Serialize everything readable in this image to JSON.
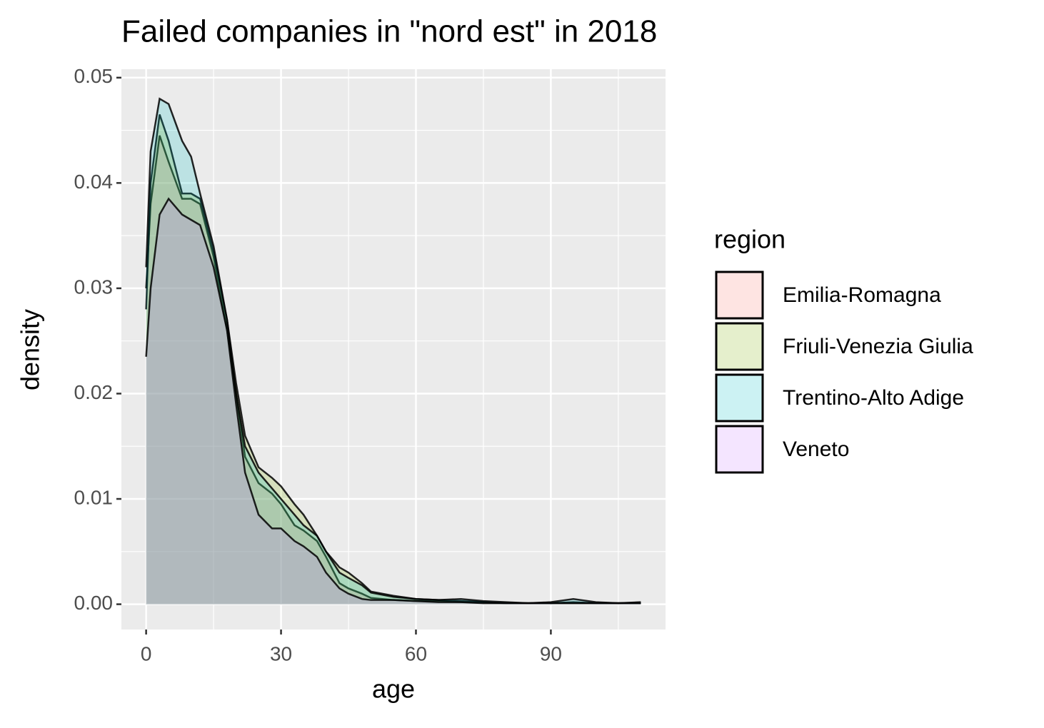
{
  "chart_data": {
    "type": "density",
    "title": "Failed companies in \"nord est\" in 2018",
    "x_label": "age",
    "y_label": "density",
    "legend_title": "region",
    "legend_position": "right",
    "x": [
      0,
      1,
      3,
      5,
      8,
      10,
      12,
      15,
      18,
      20,
      22,
      25,
      28,
      30,
      33,
      35,
      38,
      40,
      43,
      45,
      48,
      50,
      55,
      60,
      65,
      70,
      75,
      80,
      85,
      90,
      95,
      100,
      105,
      110
    ],
    "series": [
      {
        "name": "Emilia-Romagna",
        "color": "#F8766D",
        "values": [
          0.03,
          0.038,
          0.0445,
          0.042,
          0.0385,
          0.0385,
          0.038,
          0.033,
          0.026,
          0.02,
          0.014,
          0.0115,
          0.0105,
          0.0095,
          0.0075,
          0.007,
          0.006,
          0.0045,
          0.002,
          0.0015,
          0.001,
          0.0006,
          0.0004,
          0.0003,
          0.0003,
          0.0002,
          0.0002,
          0.0001,
          0.0001,
          0.0001,
          0.0001,
          0.0001,
          0.0001,
          0.0001
        ]
      },
      {
        "name": "Friuli-Venezia Giulia",
        "color": "#7CAE00",
        "values": [
          0.028,
          0.04,
          0.0465,
          0.044,
          0.039,
          0.039,
          0.0385,
          0.0335,
          0.027,
          0.021,
          0.016,
          0.013,
          0.012,
          0.0112,
          0.0095,
          0.0085,
          0.0065,
          0.005,
          0.0035,
          0.003,
          0.002,
          0.0012,
          0.0008,
          0.0005,
          0.0004,
          0.0003,
          0.0002,
          0.0001,
          0.0001,
          0.0001,
          0.0002,
          0.0001,
          0.0001,
          0.0001
        ]
      },
      {
        "name": "Trentino-Alto Adige",
        "color": "#00BFC4",
        "values": [
          0.032,
          0.043,
          0.048,
          0.0475,
          0.044,
          0.0425,
          0.039,
          0.034,
          0.027,
          0.02,
          0.015,
          0.0125,
          0.011,
          0.01,
          0.0085,
          0.0075,
          0.0065,
          0.005,
          0.003,
          0.0025,
          0.0018,
          0.0011,
          0.0007,
          0.0005,
          0.0004,
          0.0005,
          0.0003,
          0.0002,
          0.0001,
          0.0002,
          0.0005,
          0.0002,
          0.0001,
          0.0002
        ]
      },
      {
        "name": "Veneto",
        "color": "#C77CFF",
        "values": [
          0.0235,
          0.03,
          0.037,
          0.0385,
          0.037,
          0.0365,
          0.036,
          0.032,
          0.026,
          0.019,
          0.0125,
          0.0085,
          0.0072,
          0.0072,
          0.006,
          0.0055,
          0.0045,
          0.003,
          0.0015,
          0.001,
          0.0005,
          0.0004,
          0.0004,
          0.0003,
          0.0002,
          0.0002,
          0.0001,
          0.0001,
          0.0001,
          0.0001,
          0.0001,
          0.0001,
          0.0001,
          0.0001
        ]
      }
    ],
    "fill_opacity": 0.2,
    "xlim": [
      -5.5,
      115.5
    ],
    "xticks": [
      0,
      30,
      60,
      90
    ],
    "x_minor_grid": [
      15,
      45,
      75,
      105
    ],
    "ylim": [
      -0.0024,
      0.0508
    ],
    "yticks": [
      {
        "value": 0,
        "label": "0.00"
      },
      0.01,
      0.02,
      0.03,
      0.04,
      0.05
    ],
    "y_minor_grid": [
      0.005,
      0.015,
      0.025,
      0.035,
      0.045
    ],
    "grid": true
  }
}
